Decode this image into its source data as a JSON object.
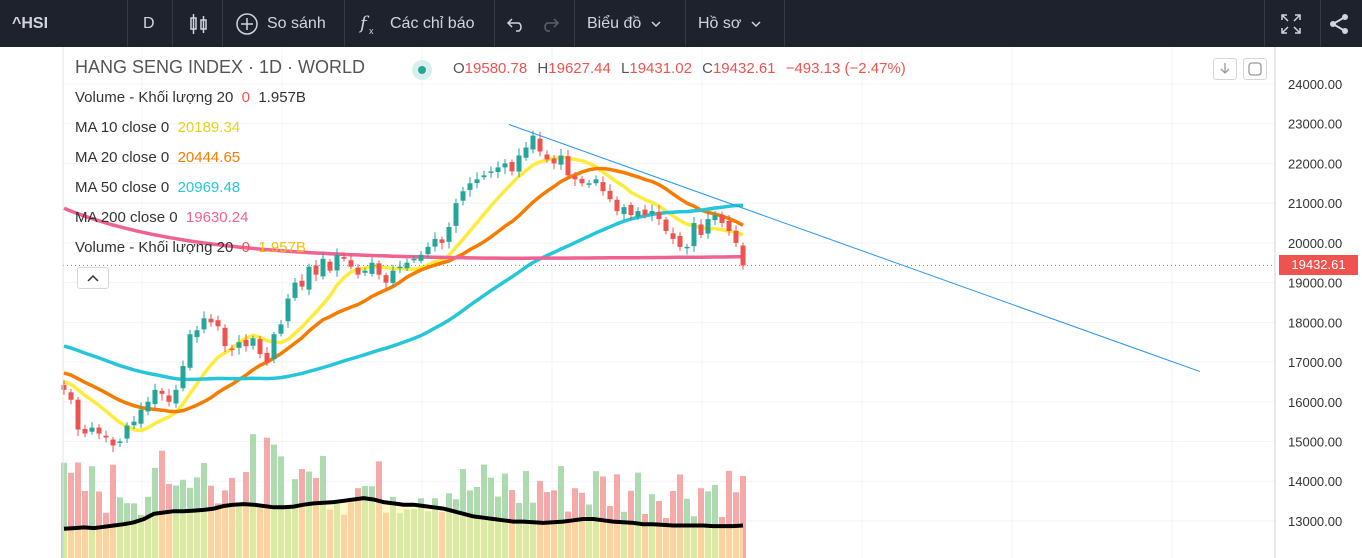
{
  "toolbar": {
    "symbol": "^HSI",
    "interval": "D",
    "compare_label": "So sánh",
    "indicators_label": "Các chỉ báo",
    "chart_type_label": "Biểu đồ",
    "profile_label": "Hồ sơ",
    "icons": [
      "candles-icon",
      "plus-circle-icon",
      "fx-icon",
      "undo-icon",
      "redo-icon",
      "fullscreen-icon",
      "share-icon"
    ]
  },
  "legend": {
    "title": "HANG SENG INDEX · 1D · WORLD",
    "open_label": "O",
    "open": "19580.78",
    "high_label": "H",
    "high": "19627.44",
    "low_label": "L",
    "low": "19431.02",
    "close_label": "C",
    "close": "19432.61",
    "change": "−493.13 (−2.47%)",
    "volume_label": "Volume - Khối lượng 20",
    "volume_zero": "0",
    "volume_value": "1.957B",
    "ma10_label": "MA 10 close 0",
    "ma10_value": "20189.34",
    "ma20_label": "MA 20 close 0",
    "ma20_value": "20444.65",
    "ma50_label": "MA 50 close 0",
    "ma50_value": "20969.48",
    "ma200_label": "MA 200 close 0",
    "ma200_value": "19630.24",
    "volume2_label": "Volume - Khối lượng 20",
    "volume2_zero": "0",
    "volume2_value": "1.957B"
  },
  "colors": {
    "up": "#26a69a",
    "down": "#ef5350",
    "vol_up": "#a5d6a7",
    "vol_down": "#f4a0a0",
    "vol_ma": "#000000",
    "ma10": "#ffeb3b",
    "ma20": "#f57c00",
    "ma50": "#26c6da",
    "ma200": "#f06292",
    "trendline": "#2196f3",
    "toolbar_bg": "#1e222d"
  },
  "chart_data": {
    "type": "candlestick",
    "title": "HANG SENG INDEX · 1D · WORLD",
    "price_ticks": [
      "24000.00",
      "23000.00",
      "22000.00",
      "21000.00",
      "20000.00",
      "19000.00",
      "18000.00",
      "17000.00",
      "16000.00",
      "15000.00",
      "14000.00",
      "13000.00"
    ],
    "ylim": [
      12800,
      24250
    ],
    "last_price_label": "19432.61",
    "last_price": 19432.61,
    "closes": [
      16300,
      16050,
      15300,
      15200,
      15350,
      15200,
      15100,
      14900,
      15000,
      15400,
      15500,
      15800,
      16000,
      16300,
      16200,
      16000,
      16300,
      16900,
      17700,
      17800,
      18100,
      18000,
      17900,
      17400,
      17300,
      17500,
      17400,
      17600,
      17200,
      17000,
      17700,
      17950,
      18600,
      19000,
      18900,
      19400,
      19200,
      19600,
      19300,
      19700,
      19600,
      19400,
      19200,
      19300,
      19500,
      19200,
      19000,
      19300,
      19400,
      19500,
      19600,
      19700,
      19900,
      20100,
      20000,
      20400,
      21000,
      21300,
      21500,
      21600,
      21700,
      21800,
      21900,
      22000,
      21800,
      22200,
      22400,
      22700,
      22300,
      22100,
      22000,
      22200,
      21700,
      21600,
      21500,
      21500,
      21600,
      21300,
      21100,
      20800,
      20900,
      20700,
      20800,
      20700,
      20800,
      20600,
      20300,
      20100,
      19900,
      19900,
      20500,
      20200,
      20600,
      20700,
      20500,
      20300,
      20000,
      19432.61
    ],
    "volume_ma_level": [
      0.45,
      0.46,
      0.47,
      0.46,
      0.48,
      0.5,
      0.52,
      0.55,
      0.6,
      0.68,
      0.7,
      0.72,
      0.72,
      0.73,
      0.74,
      0.76,
      0.8,
      0.82,
      0.83,
      0.82,
      0.8,
      0.78,
      0.78,
      0.79,
      0.82,
      0.84,
      0.85,
      0.86,
      0.88,
      0.9,
      0.92,
      0.9,
      0.86,
      0.84,
      0.82,
      0.82,
      0.8,
      0.78,
      0.76,
      0.72,
      0.68,
      0.64,
      0.62,
      0.6,
      0.58,
      0.56,
      0.56,
      0.55,
      0.54,
      0.55,
      0.56,
      0.58,
      0.6,
      0.6,
      0.58,
      0.56,
      0.55,
      0.54,
      0.52,
      0.52,
      0.51,
      0.5,
      0.5,
      0.5,
      0.5,
      0.49,
      0.49,
      0.49,
      0.5
    ]
  }
}
